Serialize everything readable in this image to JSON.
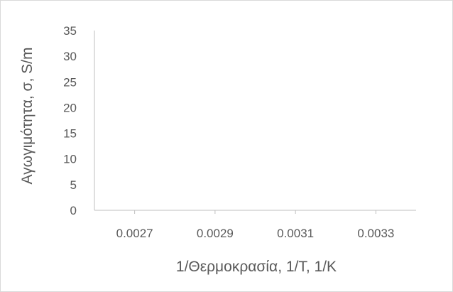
{
  "chart_data": {
    "type": "scatter",
    "title": "",
    "xlabel": "1/Θερμοκρασία, 1/T, 1/K",
    "ylabel": "Αγωγιμότητα, σ, S/m",
    "xlim": [
      0.0026,
      0.0034
    ],
    "ylim": [
      0,
      35
    ],
    "x_ticks": [
      "0.0027",
      "0.0029",
      "0.0031",
      "0.0033"
    ],
    "x_tick_values": [
      0.0027,
      0.0029,
      0.0031,
      0.0033
    ],
    "y_ticks": [
      "0",
      "5",
      "10",
      "15",
      "20",
      "25",
      "30",
      "35"
    ],
    "y_tick_values": [
      0,
      5,
      10,
      15,
      20,
      25,
      30,
      35
    ],
    "grid": false,
    "series": [
      {
        "x": [],
        "y": []
      }
    ],
    "colors": {
      "axis": "#bfbfbf",
      "text": "#595959",
      "border": "#d9d9d9"
    }
  }
}
